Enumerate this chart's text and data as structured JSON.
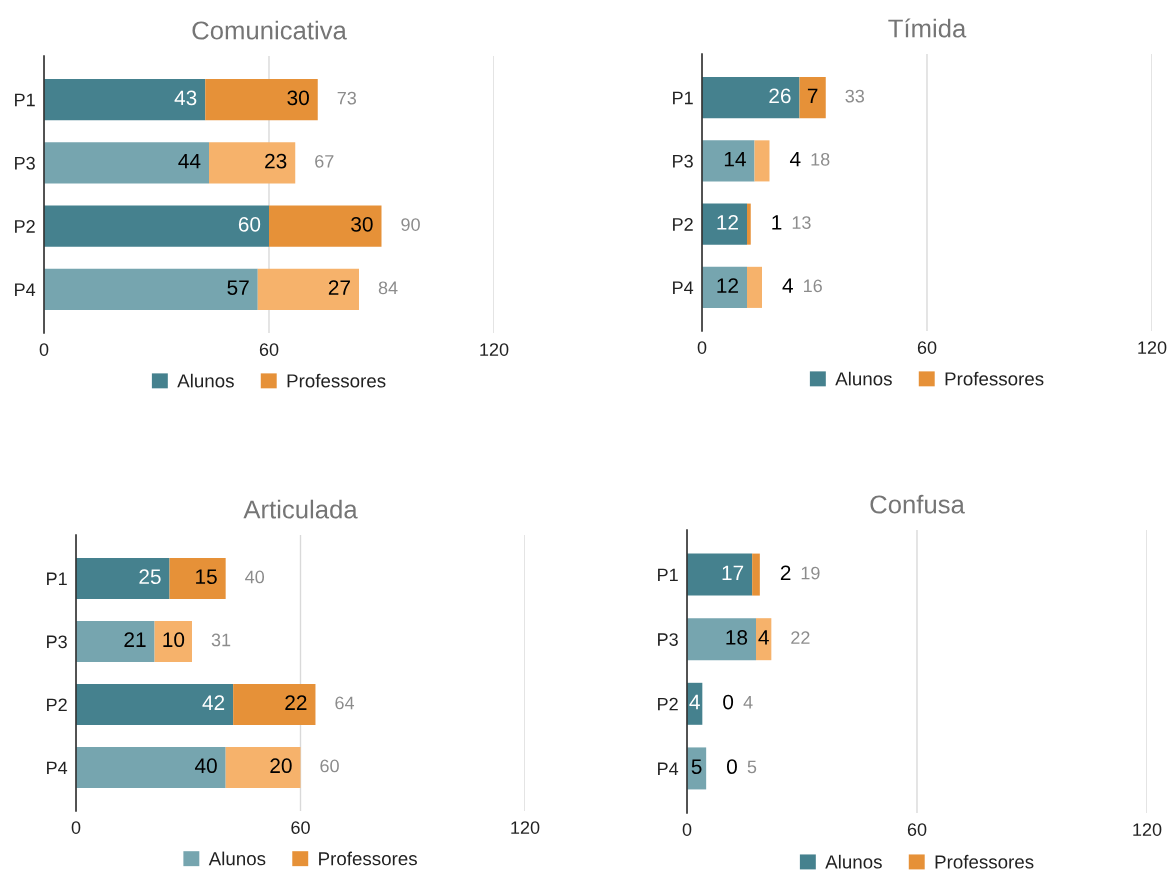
{
  "chart_data": [
    {
      "type": "bar",
      "orientation": "horizontal",
      "stacked": true,
      "title": "Comunicativa",
      "categories": [
        "P1",
        "P3",
        "P2",
        "P4"
      ],
      "series": [
        {
          "name": "Alunos",
          "color": "#45818e",
          "colors": [
            "#45818e",
            "#76a5af",
            "#45818e",
            "#76a5af"
          ],
          "values": [
            43,
            44,
            60,
            57
          ]
        },
        {
          "name": "Professores",
          "color": "#e69138",
          "colors": [
            "#e69138",
            "#f6b26b",
            "#e69138",
            "#f6b26b"
          ],
          "values": [
            30,
            23,
            30,
            27
          ]
        }
      ],
      "xlim": [
        0,
        120
      ],
      "xticks": [
        0,
        60,
        120
      ],
      "grid": "x",
      "legend": "bottom",
      "data_labels": true,
      "totals": [
        "73",
        "67",
        "90",
        "84"
      ]
    },
    {
      "type": "bar",
      "orientation": "horizontal",
      "stacked": true,
      "title": "Tímida",
      "categories": [
        "P1",
        "P3",
        "P2",
        "P4"
      ],
      "series": [
        {
          "name": "Alunos",
          "color": "#45818e",
          "colors": [
            "#45818e",
            "#76a5af",
            "#45818e",
            "#76a5af"
          ],
          "values": [
            26,
            14,
            12,
            12
          ]
        },
        {
          "name": "Professores",
          "color": "#e69138",
          "colors": [
            "#e69138",
            "#f6b26b",
            "#e69138",
            "#f6b26b"
          ],
          "values": [
            7,
            4,
            1,
            4
          ]
        }
      ],
      "xlim": [
        0,
        120
      ],
      "xticks": [
        0,
        60,
        120
      ],
      "grid": "x",
      "legend": "bottom",
      "data_labels": true,
      "totals": [
        "33",
        "18",
        "13",
        "16"
      ]
    },
    {
      "type": "bar",
      "orientation": "horizontal",
      "stacked": true,
      "title": "Articulada",
      "categories": [
        "P1",
        "P3",
        "P2",
        "P4"
      ],
      "series": [
        {
          "name": "Alunos",
          "color": "#76a5af",
          "colors": [
            "#45818e",
            "#76a5af",
            "#45818e",
            "#76a5af"
          ],
          "values": [
            25,
            21,
            42,
            40
          ]
        },
        {
          "name": "Professores",
          "color": "#e69138",
          "colors": [
            "#e69138",
            "#f6b26b",
            "#e69138",
            "#f6b26b"
          ],
          "values": [
            15,
            10,
            22,
            20
          ]
        }
      ],
      "xlim": [
        0,
        120
      ],
      "xticks": [
        0,
        60,
        120
      ],
      "grid": "x",
      "legend": "bottom",
      "data_labels": true,
      "totals": [
        "40",
        "31",
        "64",
        "60"
      ]
    },
    {
      "type": "bar",
      "orientation": "horizontal",
      "stacked": true,
      "title": "Confusa",
      "categories": [
        "P1",
        "P3",
        "P2",
        "P4"
      ],
      "series": [
        {
          "name": "Alunos",
          "color": "#45818e",
          "colors": [
            "#45818e",
            "#76a5af",
            "#45818e",
            "#76a5af"
          ],
          "values": [
            17,
            18,
            4,
            5
          ]
        },
        {
          "name": "Professores",
          "color": "#e69138",
          "colors": [
            "#e69138",
            "#f6b26b",
            "#e69138",
            "#f6b26b"
          ],
          "values": [
            2,
            4,
            0,
            0
          ]
        }
      ],
      "xlim": [
        0,
        120
      ],
      "xticks": [
        0,
        60,
        120
      ],
      "grid": "x",
      "legend": "bottom",
      "data_labels": true,
      "totals": [
        "19",
        "22",
        "4",
        "5"
      ]
    }
  ]
}
